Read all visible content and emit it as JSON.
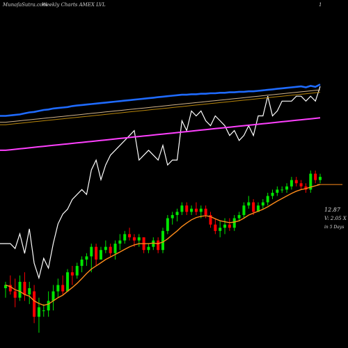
{
  "header": {
    "site": "MunafaSutra.com",
    "title": "Weekly Charts AMEX  LVL",
    "page_marker": "1"
  },
  "side_panel": {
    "price": "12.87",
    "volume": "V: 2.05 X",
    "period": "in 5 Days"
  },
  "colors": {
    "background": "#000000",
    "up": "#00e600",
    "down": "#ff0000",
    "ema_short": "#ff8c1a",
    "ma_blue": "#1f6bff",
    "ma_gold": "#b8860b",
    "ma_tan": "#d2b48c",
    "ma_magenta": "#ff40ff",
    "price_line": "#ffffff"
  },
  "chart_data": [
    {
      "type": "line",
      "panel": "moving averages and price",
      "x": [
        1,
        2,
        3,
        4,
        5,
        6,
        7,
        8,
        9,
        10,
        11,
        12,
        13,
        14,
        15,
        16,
        17,
        18,
        19,
        20,
        21,
        22,
        23,
        24,
        25,
        26,
        27,
        28,
        29,
        30,
        31,
        32,
        33,
        34,
        35,
        36,
        37,
        38,
        39,
        40,
        41,
        42,
        43,
        44,
        45,
        46,
        47,
        48,
        49,
        50,
        51,
        52,
        53,
        54,
        55,
        56,
        57,
        58,
        59,
        60,
        61,
        62,
        63,
        64,
        65,
        66,
        67
      ],
      "series": [
        {
          "role": "price",
          "color": "#ffffff",
          "values": [
            8.9,
            8.9,
            8.8,
            9.1,
            8.7,
            9.2,
            8.5,
            8.2,
            8.6,
            8.4,
            8.9,
            9.3,
            9.5,
            9.6,
            9.8,
            9.9,
            10.0,
            9.9,
            10.4,
            10.6,
            10.2,
            10.5,
            10.7,
            10.8,
            10.9,
            11.0,
            11.1,
            11.2,
            10.6,
            10.7,
            10.8,
            10.7,
            10.6,
            10.9,
            10.5,
            10.6,
            10.6,
            11.4,
            11.2,
            11.6,
            11.5,
            11.6,
            11.4,
            11.3,
            11.5,
            11.4,
            11.3,
            11.1,
            11.2,
            11.0,
            11.1,
            11.3,
            11.1,
            11.5,
            11.5,
            11.9,
            11.5,
            11.6,
            11.8,
            11.8,
            11.8,
            11.9,
            11.9,
            11.8,
            11.9,
            11.8,
            12.1
          ]
        },
        {
          "role": "moving average",
          "color": "#1f6bff",
          "values": [
            11.5,
            11.51,
            11.52,
            11.53,
            11.55,
            11.57,
            11.58,
            11.6,
            11.62,
            11.63,
            11.65,
            11.66,
            11.67,
            11.68,
            11.7,
            11.71,
            11.72,
            11.73,
            11.74,
            11.75,
            11.76,
            11.77,
            11.78,
            11.79,
            11.8,
            11.81,
            11.82,
            11.83,
            11.84,
            11.85,
            11.86,
            11.87,
            11.88,
            11.89,
            11.9,
            11.91,
            11.92,
            11.93,
            11.93,
            11.94,
            11.94,
            11.95,
            11.95,
            11.96,
            11.96,
            11.97,
            11.97,
            11.98,
            11.98,
            11.99,
            11.99,
            12.0,
            12.0,
            12.01,
            12.02,
            12.03,
            12.04,
            12.05,
            12.06,
            12.07,
            12.08,
            12.09,
            12.1,
            12.08,
            12.11,
            12.09,
            12.14
          ]
        },
        {
          "role": "moving average",
          "color": "#d2b48c",
          "values": [
            11.37,
            11.38,
            11.39,
            11.4,
            11.41,
            11.42,
            11.43,
            11.44,
            11.45,
            11.46,
            11.47,
            11.48,
            11.49,
            11.5,
            11.51,
            11.52,
            11.53,
            11.54,
            11.55,
            11.56,
            11.57,
            11.58,
            11.59,
            11.6,
            11.61,
            11.62,
            11.63,
            11.64,
            11.65,
            11.66,
            11.67,
            11.68,
            11.69,
            11.7,
            11.71,
            11.72,
            11.73,
            11.74,
            11.75,
            11.76,
            11.77,
            11.78,
            11.79,
            11.8,
            11.81,
            11.82,
            11.83,
            11.84,
            11.85,
            11.86,
            11.87,
            11.88,
            11.89,
            11.9,
            11.91,
            11.92,
            11.93,
            11.94,
            11.95,
            11.96,
            11.97,
            11.98,
            11.99,
            12.0,
            12.01,
            12.02,
            12.03
          ]
        },
        {
          "role": "moving average",
          "color": "#b8860b",
          "values": [
            11.32,
            11.33,
            11.34,
            11.35,
            11.36,
            11.37,
            11.38,
            11.39,
            11.4,
            11.41,
            11.42,
            11.43,
            11.44,
            11.45,
            11.46,
            11.47,
            11.48,
            11.49,
            11.5,
            11.51,
            11.52,
            11.53,
            11.54,
            11.55,
            11.56,
            11.57,
            11.58,
            11.59,
            11.6,
            11.61,
            11.62,
            11.63,
            11.64,
            11.65,
            11.66,
            11.67,
            11.68,
            11.69,
            11.7,
            11.71,
            11.72,
            11.73,
            11.74,
            11.75,
            11.76,
            11.77,
            11.78,
            11.79,
            11.8,
            11.81,
            11.82,
            11.83,
            11.84,
            11.85,
            11.86,
            11.87,
            11.88,
            11.89,
            11.9,
            11.91,
            11.92,
            11.93,
            11.94,
            11.95,
            11.96,
            11.97,
            11.98
          ]
        },
        {
          "role": "moving average",
          "color": "#ff40ff",
          "values": [
            10.8,
            10.81,
            10.82,
            10.83,
            10.84,
            10.85,
            10.86,
            10.87,
            10.88,
            10.89,
            10.9,
            10.91,
            10.92,
            10.93,
            10.94,
            10.95,
            10.96,
            10.97,
            10.98,
            10.99,
            11.0,
            11.01,
            11.02,
            11.03,
            11.04,
            11.05,
            11.06,
            11.07,
            11.08,
            11.09,
            11.1,
            11.11,
            11.12,
            11.13,
            11.14,
            11.15,
            11.16,
            11.17,
            11.18,
            11.19,
            11.2,
            11.21,
            11.22,
            11.23,
            11.24,
            11.25,
            11.26,
            11.27,
            11.28,
            11.29,
            11.3,
            11.31,
            11.32,
            11.33,
            11.34,
            11.35,
            11.36,
            11.37,
            11.38,
            11.39,
            11.4,
            11.41,
            11.42,
            11.43,
            11.44,
            11.45,
            11.46
          ]
        }
      ]
    },
    {
      "type": "candlestick",
      "panel": "weekly price",
      "x": [
        1,
        2,
        3,
        4,
        5,
        6,
        7,
        8,
        9,
        10,
        11,
        12,
        13,
        14,
        15,
        16,
        17,
        18,
        19,
        20,
        21,
        22,
        23,
        24,
        25,
        26,
        27,
        28,
        29,
        30,
        31,
        32,
        33,
        34,
        35,
        36,
        37,
        38,
        39,
        40,
        41,
        42,
        43,
        44,
        45,
        46,
        47,
        48,
        49,
        50,
        51,
        52,
        53,
        54,
        55,
        56,
        57,
        58,
        59,
        60,
        61,
        62,
        63,
        64,
        65,
        66,
        67
      ],
      "ohlc": [
        [
          7.9,
          8.1,
          7.6,
          8.0
        ],
        [
          8.0,
          8.3,
          7.7,
          7.8
        ],
        [
          7.8,
          8.2,
          7.3,
          7.6
        ],
        [
          7.6,
          8.3,
          7.5,
          8.1
        ],
        [
          8.1,
          8.4,
          7.5,
          7.7
        ],
        [
          7.7,
          8.1,
          7.4,
          7.9
        ],
        [
          7.8,
          8.0,
          6.8,
          7.0
        ],
        [
          7.0,
          7.6,
          6.5,
          7.3
        ],
        [
          7.2,
          7.4,
          7.0,
          7.2
        ],
        [
          7.2,
          7.8,
          7.0,
          7.5
        ],
        [
          7.5,
          8.0,
          7.2,
          7.8
        ],
        [
          7.8,
          8.2,
          7.6,
          8.0
        ],
        [
          8.0,
          8.3,
          7.7,
          7.8
        ],
        [
          7.8,
          8.5,
          7.8,
          8.4
        ],
        [
          8.4,
          8.6,
          8.0,
          8.3
        ],
        [
          8.3,
          8.7,
          8.2,
          8.6
        ],
        [
          8.6,
          8.9,
          8.4,
          8.8
        ],
        [
          8.8,
          9.0,
          8.6,
          8.9
        ],
        [
          8.9,
          9.3,
          8.4,
          9.2
        ],
        [
          9.2,
          9.3,
          8.6,
          8.8
        ],
        [
          8.8,
          9.2,
          8.8,
          9.1
        ],
        [
          9.1,
          9.4,
          9.0,
          9.2
        ],
        [
          9.2,
          9.3,
          8.9,
          9.0
        ],
        [
          9.0,
          9.4,
          8.8,
          9.3
        ],
        [
          9.3,
          9.6,
          9.1,
          9.4
        ],
        [
          9.4,
          9.7,
          9.3,
          9.6
        ],
        [
          9.6,
          9.8,
          9.4,
          9.5
        ],
        [
          9.5,
          9.6,
          9.2,
          9.4
        ],
        [
          9.4,
          9.6,
          9.2,
          9.5
        ],
        [
          9.5,
          9.5,
          9.0,
          9.1
        ],
        [
          9.1,
          9.3,
          9.0,
          9.2
        ],
        [
          9.2,
          9.5,
          9.1,
          9.4
        ],
        [
          9.4,
          9.5,
          9.0,
          9.1
        ],
        [
          9.1,
          9.8,
          9.0,
          9.7
        ],
        [
          9.7,
          10.2,
          9.6,
          10.1
        ],
        [
          10.1,
          10.3,
          9.9,
          10.2
        ],
        [
          10.2,
          10.4,
          10.0,
          10.3
        ],
        [
          10.3,
          10.6,
          10.2,
          10.5
        ],
        [
          10.5,
          10.6,
          10.2,
          10.3
        ],
        [
          10.3,
          10.5,
          10.2,
          10.4
        ],
        [
          10.4,
          10.6,
          10.2,
          10.3
        ],
        [
          10.3,
          10.5,
          10.1,
          10.4
        ],
        [
          10.4,
          10.5,
          10.1,
          10.2
        ],
        [
          10.2,
          10.3,
          9.8,
          9.9
        ],
        [
          9.9,
          10.1,
          9.6,
          9.7
        ],
        [
          9.7,
          10.0,
          9.5,
          9.8
        ],
        [
          9.8,
          10.1,
          9.6,
          9.9
        ],
        [
          9.9,
          10.1,
          9.7,
          9.8
        ],
        [
          9.8,
          10.2,
          9.7,
          10.1
        ],
        [
          10.1,
          10.3,
          10.0,
          10.2
        ],
        [
          10.2,
          10.6,
          10.1,
          10.5
        ],
        [
          10.5,
          10.8,
          10.4,
          10.6
        ],
        [
          10.6,
          10.7,
          10.2,
          10.3
        ],
        [
          10.3,
          10.6,
          10.3,
          10.5
        ],
        [
          10.5,
          10.7,
          10.4,
          10.6
        ],
        [
          10.6,
          10.9,
          10.5,
          10.8
        ],
        [
          10.8,
          11.0,
          10.7,
          10.9
        ],
        [
          10.9,
          11.1,
          10.8,
          11.0
        ],
        [
          11.0,
          11.1,
          10.9,
          11.0
        ],
        [
          11.0,
          11.2,
          10.9,
          11.1
        ],
        [
          11.1,
          11.4,
          11.0,
          11.3
        ],
        [
          11.3,
          11.4,
          11.1,
          11.2
        ],
        [
          11.2,
          11.3,
          11.0,
          11.1
        ],
        [
          11.1,
          11.2,
          10.9,
          11.0
        ],
        [
          11.0,
          11.6,
          10.9,
          11.5
        ],
        [
          11.5,
          11.6,
          11.2,
          11.3
        ],
        [
          11.3,
          11.5,
          11.2,
          11.4
        ]
      ],
      "ema": [
        8.0,
        7.95,
        7.85,
        7.8,
        7.7,
        7.65,
        7.5,
        7.42,
        7.36,
        7.4,
        7.5,
        7.6,
        7.68,
        7.8,
        7.92,
        8.05,
        8.2,
        8.36,
        8.5,
        8.6,
        8.7,
        8.8,
        8.88,
        8.96,
        9.04,
        9.12,
        9.2,
        9.26,
        9.3,
        9.3,
        9.3,
        9.32,
        9.3,
        9.35,
        9.45,
        9.58,
        9.7,
        9.84,
        9.95,
        10.05,
        10.12,
        10.16,
        10.18,
        10.15,
        10.08,
        10.02,
        9.99,
        9.96,
        9.98,
        10.02,
        10.1,
        10.2,
        10.26,
        10.32,
        10.38,
        10.46,
        10.55,
        10.64,
        10.72,
        10.8,
        10.88,
        10.95,
        11.0,
        11.03,
        11.08,
        11.12,
        11.16
      ],
      "last_price_line": 11.16
    }
  ]
}
